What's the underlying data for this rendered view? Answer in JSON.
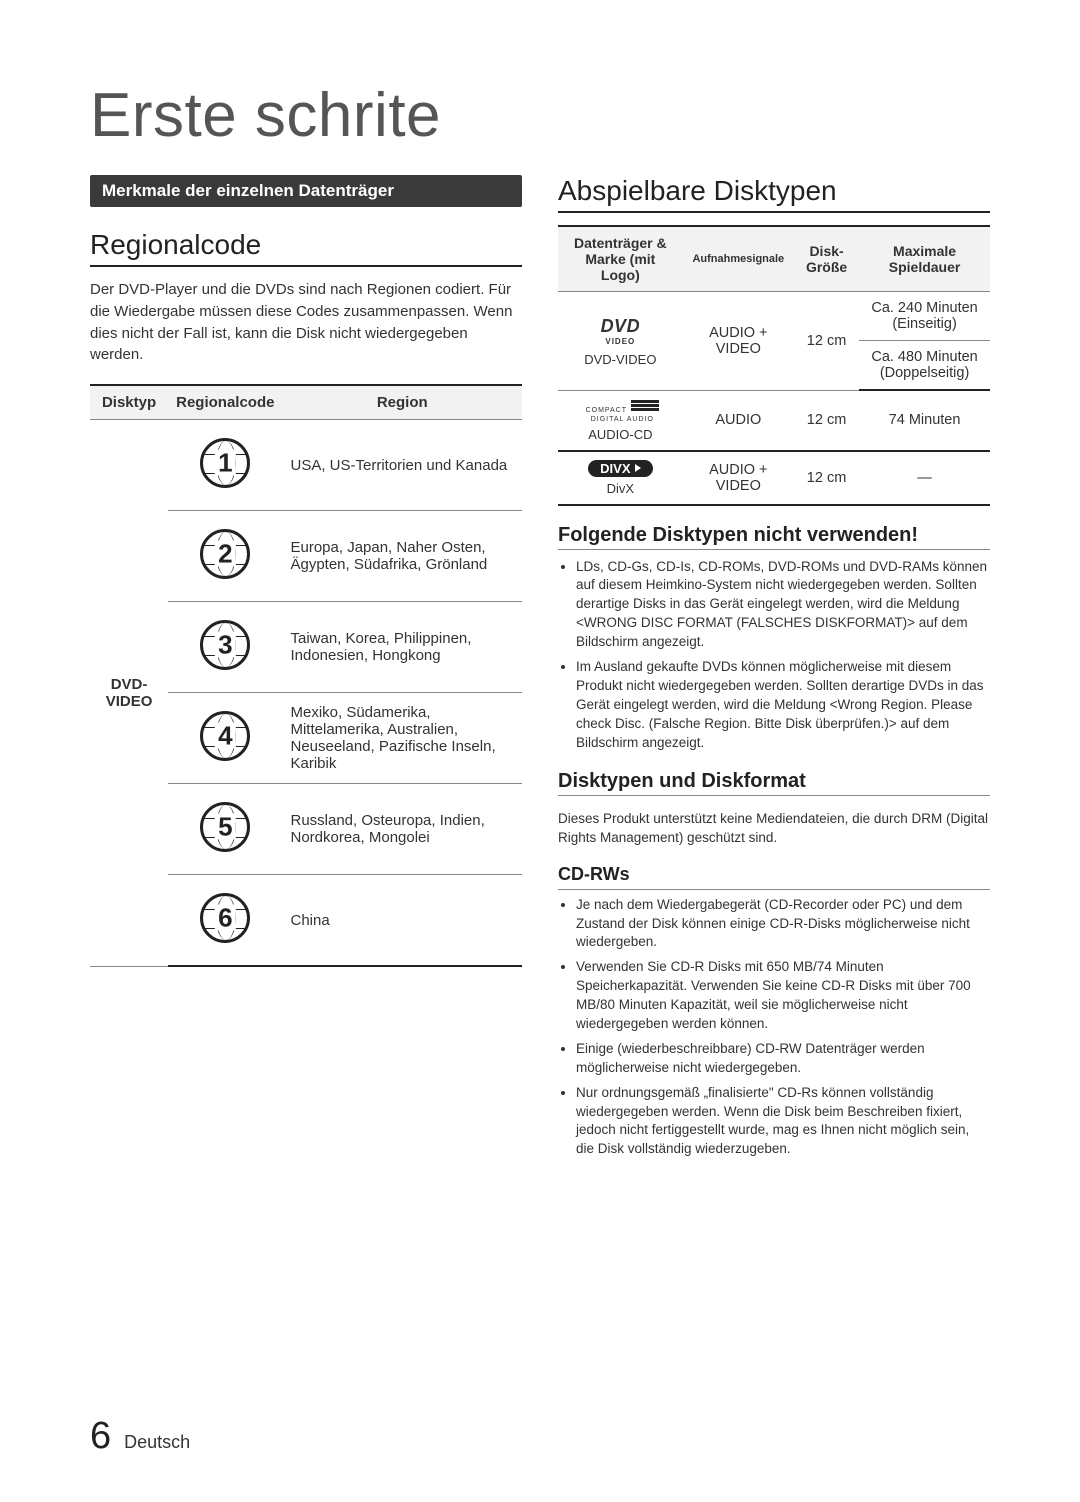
{
  "page": {
    "title": "Erste schrite",
    "number": "6",
    "language": "Deutsch"
  },
  "section_heading": "Merkmale der einzelnen Datenträger",
  "regional": {
    "heading": "Regionalcode",
    "intro": "Der DVD-Player und die DVDs sind nach Regionen codiert. Für die Wiedergabe müssen diese Codes zusammenpassen. Wenn dies nicht der Fall ist, kann die Disk nicht wiedergegeben werden.",
    "cols": {
      "c1": "Disktyp",
      "c2": "Regionalcode",
      "c3": "Region"
    },
    "disktyp": "DVD-VIDEO",
    "rows": [
      {
        "num": "1",
        "region": "USA, US-Territorien und Kanada"
      },
      {
        "num": "2",
        "region": "Europa, Japan, Naher Osten, Ägypten, Südafrika, Grönland"
      },
      {
        "num": "3",
        "region": "Taiwan, Korea, Philippinen, Indonesien, Hongkong"
      },
      {
        "num": "4",
        "region": "Mexiko, Südamerika, Mittelamerika, Australien, Neuseeland, Pazifische Inseln, Karibik"
      },
      {
        "num": "5",
        "region": "Russland, Osteuropa, Indien, Nordkorea, Mongolei"
      },
      {
        "num": "6",
        "region": "China"
      }
    ]
  },
  "playable": {
    "heading": "Abspielbare Disktypen",
    "cols": {
      "c1": "Datenträger & Marke (mit Logo)",
      "c2": "Aufnahmesignale",
      "c3": "Disk-Größe",
      "c4": "Maximale Spieldauer"
    },
    "rows": {
      "dvd_name": "DVD-VIDEO",
      "dvd_signal": "AUDIO + VIDEO",
      "dvd_size": "12 cm",
      "dvd_dur1": "Ca. 240 Minuten (Einseitig)",
      "dvd_dur2": "Ca. 480 Minuten (Doppelseitig)",
      "cd_name": "AUDIO-CD",
      "cd_signal": "AUDIO",
      "cd_size": "12 cm",
      "cd_dur": "74 Minuten",
      "divx_name": "DivX",
      "divx_signal": "AUDIO + VIDEO",
      "divx_size": "12 cm",
      "divx_dur": "—"
    }
  },
  "notuse": {
    "heading": "Folgende Disktypen nicht verwenden!",
    "bullets": [
      "LDs, CD-Gs, CD-Is, CD-ROMs, DVD-ROMs und DVD-RAMs können auf diesem Heimkino-System nicht wiedergegeben werden. Sollten derartige Disks in das Gerät eingelegt werden, wird die Meldung <WRONG DISC FORMAT (FALSCHES DISKFORMAT)> auf dem Bildschirm angezeigt.",
      "Im Ausland gekaufte DVDs können möglicherweise mit diesem Produkt nicht wiedergegeben werden. Sollten derartige DVDs in das Gerät eingelegt werden, wird die Meldung <Wrong Region. Please check Disc. (Falsche Region. Bitte Disk überprüfen.)> auf dem Bildschirm angezeigt."
    ]
  },
  "formats": {
    "heading": "Disktypen und Diskformat",
    "intro": "Dieses Produkt unterstützt keine Mediendateien, die durch DRM (Digital Rights Management) geschützt sind.",
    "cdrw_heading": "CD-RWs",
    "cdrw_bullets": [
      "Je nach dem Wiedergabegerät (CD-Recorder oder PC) und dem Zustand der Disk können einige CD-R-Disks möglicherweise nicht wiedergeben.",
      "Verwenden Sie CD-R Disks mit 650 MB/74 Minuten Speicherkapazität. Verwenden Sie keine CD-R Disks mit über 700 MB/80 Minuten Kapazität, weil sie möglicherweise nicht wiedergegeben werden können.",
      "Einige (wiederbeschreibbare) CD-RW Datenträger werden möglicherweise nicht wiedergegeben.",
      "Nur ordnungsgemäß „finalisierte\" CD-Rs können vollständig wiedergegeben werden. Wenn die Disk beim Beschreiben fixiert, jedoch nicht fertiggestellt wurde, mag es Ihnen nicht möglich sein, die Disk vollständig wiederzugeben."
    ]
  }
}
